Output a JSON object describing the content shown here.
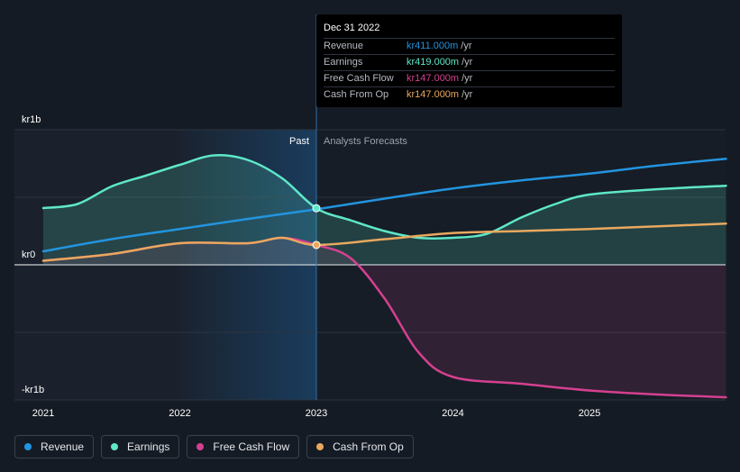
{
  "chart_data": {
    "type": "area",
    "x_axis": {
      "ticks": [
        "2021",
        "2022",
        "2023",
        "2024",
        "2025"
      ]
    },
    "y_axis": {
      "ticks": [
        "kr1b",
        "kr0",
        "-kr1b"
      ],
      "ylim": [
        -1000,
        1000
      ],
      "unit": "kr m"
    },
    "regions": {
      "past_label": "Past",
      "forecast_label": "Analysts Forecasts",
      "divider_x": 2023.0
    },
    "series": [
      {
        "name": "Revenue",
        "color": "#2394df",
        "points": [
          [
            2021.0,
            100
          ],
          [
            2021.5,
            190
          ],
          [
            2022.0,
            265
          ],
          [
            2022.5,
            340
          ],
          [
            2023.0,
            411
          ],
          [
            2023.5,
            490
          ],
          [
            2024.0,
            565
          ],
          [
            2024.5,
            625
          ],
          [
            2025.0,
            675
          ],
          [
            2025.5,
            735
          ],
          [
            2026.0,
            785
          ]
        ]
      },
      {
        "name": "Earnings",
        "color": "#5ee7c8",
        "points": [
          [
            2021.0,
            420
          ],
          [
            2021.25,
            450
          ],
          [
            2021.5,
            580
          ],
          [
            2021.75,
            660
          ],
          [
            2022.0,
            740
          ],
          [
            2022.25,
            810
          ],
          [
            2022.5,
            775
          ],
          [
            2022.75,
            640
          ],
          [
            2023.0,
            419
          ],
          [
            2023.25,
            330
          ],
          [
            2023.5,
            250
          ],
          [
            2023.75,
            200
          ],
          [
            2024.0,
            200
          ],
          [
            2024.25,
            230
          ],
          [
            2024.5,
            350
          ],
          [
            2024.75,
            450
          ],
          [
            2025.0,
            520
          ],
          [
            2025.5,
            560
          ],
          [
            2026.0,
            585
          ]
        ]
      },
      {
        "name": "Free Cash Flow",
        "color": "#d4408f",
        "points": [
          [
            2021.0,
            30
          ],
          [
            2021.5,
            80
          ],
          [
            2022.0,
            160
          ],
          [
            2022.5,
            160
          ],
          [
            2022.75,
            200
          ],
          [
            2023.0,
            147
          ],
          [
            2023.25,
            50
          ],
          [
            2023.5,
            -250
          ],
          [
            2023.75,
            -650
          ],
          [
            2024.0,
            -830
          ],
          [
            2024.5,
            -880
          ],
          [
            2025.0,
            -930
          ],
          [
            2025.5,
            -960
          ],
          [
            2026.0,
            -980
          ]
        ]
      },
      {
        "name": "Cash From Op",
        "color": "#e9a85e",
        "points": [
          [
            2021.0,
            30
          ],
          [
            2021.5,
            80
          ],
          [
            2022.0,
            160
          ],
          [
            2022.5,
            160
          ],
          [
            2022.75,
            200
          ],
          [
            2023.0,
            147
          ],
          [
            2023.5,
            190
          ],
          [
            2024.0,
            235
          ],
          [
            2024.5,
            250
          ],
          [
            2025.0,
            265
          ],
          [
            2025.5,
            285
          ],
          [
            2026.0,
            305
          ]
        ]
      }
    ],
    "highlight": {
      "x": 2023.0
    }
  },
  "tooltip": {
    "title": "Dec 31 2022",
    "rows": [
      {
        "label": "Revenue",
        "value": "kr411.000m",
        "unit": "/yr",
        "color": "#2394df"
      },
      {
        "label": "Earnings",
        "value": "kr419.000m",
        "unit": "/yr",
        "color": "#5ee7c8"
      },
      {
        "label": "Free Cash Flow",
        "value": "kr147.000m",
        "unit": "/yr",
        "color": "#d4408f"
      },
      {
        "label": "Cash From Op",
        "value": "kr147.000m",
        "unit": "/yr",
        "color": "#e9a85e"
      }
    ]
  },
  "legend": [
    {
      "label": "Revenue",
      "color": "#2394df"
    },
    {
      "label": "Earnings",
      "color": "#5ee7c8"
    },
    {
      "label": "Free Cash Flow",
      "color": "#d4408f"
    },
    {
      "label": "Cash From Op",
      "color": "#e9a85e"
    }
  ]
}
